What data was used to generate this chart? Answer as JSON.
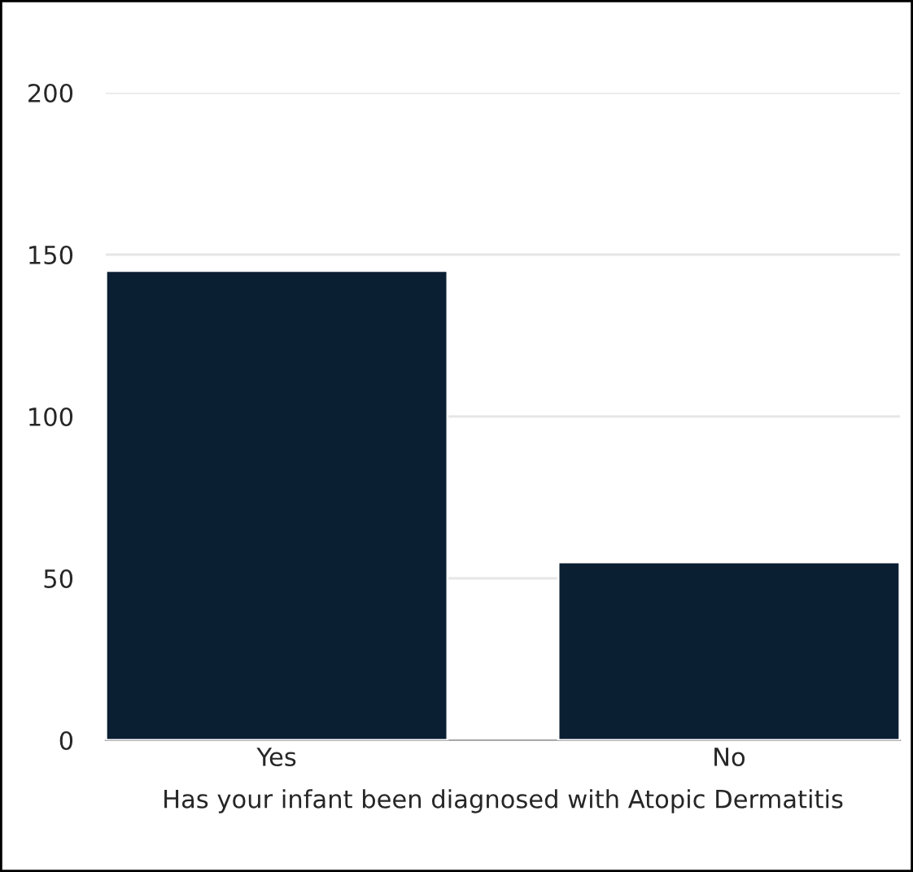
{
  "chart_data": {
    "type": "bar",
    "xlabel": "Has your infant been diagnosed with Atopic Dermatitis",
    "categories": [
      "Yes",
      "No"
    ],
    "values": [
      145,
      55
    ],
    "color": "#0b1f33",
    "ylim": [
      0,
      200
    ],
    "yticks": [
      0,
      50,
      100,
      150,
      200
    ],
    "grid": "y"
  }
}
